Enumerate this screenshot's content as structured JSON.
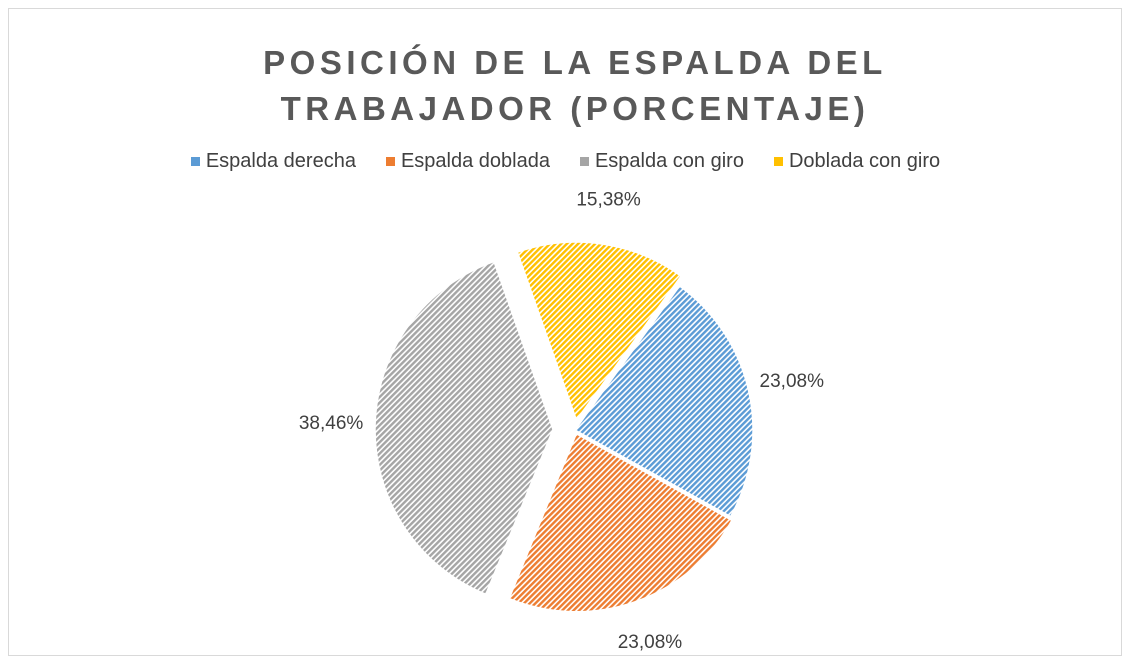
{
  "chart_data": {
    "type": "pie",
    "title": "POSICIÓN DE LA ESPALDA DEL TRABAJADOR (PORCENTAJE)",
    "categories": [
      "Espalda derecha",
      "Espalda doblada",
      "Espalda con giro",
      "Doblada con giro"
    ],
    "values": [
      23.08,
      23.08,
      38.46,
      15.38
    ],
    "value_labels": [
      "23,08%",
      "23,08%",
      "38,46%",
      "15,38%"
    ],
    "colors": [
      "#5b9bd5",
      "#ed7d31",
      "#a5a5a5",
      "#ffc000"
    ],
    "legend": "top"
  }
}
